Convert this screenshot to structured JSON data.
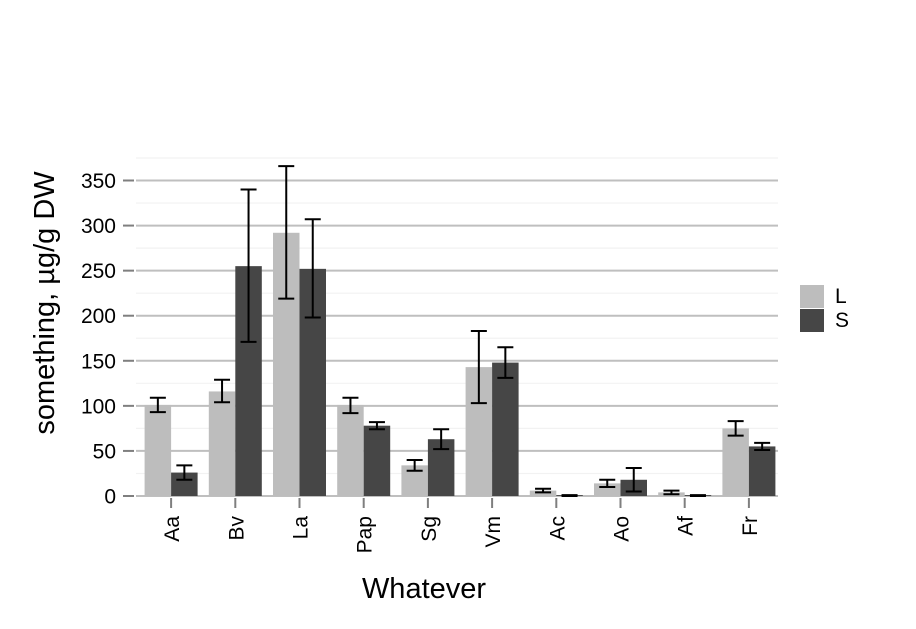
{
  "chart_data": {
    "type": "bar",
    "title": "",
    "xlabel": "Whatever",
    "ylabel": "something, µg/g DW",
    "ylim": [
      0,
      400
    ],
    "yticks": [
      0,
      50,
      100,
      150,
      200,
      250,
      300,
      350
    ],
    "grid": true,
    "legend_position": "right",
    "categories": [
      "Aa",
      "Bv",
      "La",
      "Pap",
      "Sg",
      "Vm",
      "Ac",
      "Ao",
      "Af",
      "Fr"
    ],
    "series": [
      {
        "name": "L",
        "color": "#bdbdbd",
        "values": [
          101,
          116,
          292,
          101,
          34,
          143,
          6,
          14,
          4,
          75
        ],
        "err_low": [
          93,
          104,
          219,
          92,
          28,
          103,
          4,
          10,
          2,
          67
        ],
        "err_high": [
          109,
          129,
          366,
          109,
          40,
          183,
          8,
          18,
          6,
          83
        ]
      },
      {
        "name": "S",
        "color": "#464646",
        "values": [
          26,
          255,
          252,
          78,
          63,
          148,
          1,
          18,
          1,
          55
        ],
        "err_low": [
          18,
          171,
          198,
          74,
          52,
          131,
          0,
          5,
          0,
          51
        ],
        "err_high": [
          34,
          340,
          307,
          82,
          74,
          165,
          1,
          31,
          1,
          59
        ]
      }
    ]
  }
}
